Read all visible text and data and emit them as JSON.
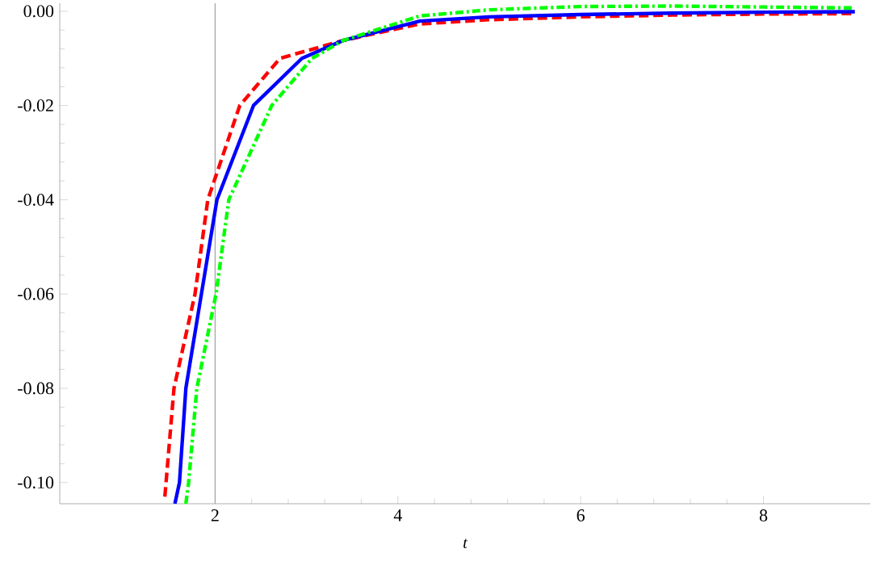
{
  "chart_data": {
    "type": "line",
    "xlabel": "t",
    "xlim": [
      0.3,
      9.17
    ],
    "ylim": [
      -0.1045,
      0.0017
    ],
    "xticks": [
      2,
      4,
      6,
      8
    ],
    "yticks": [
      {
        "value": 0,
        "label": "0.00"
      },
      {
        "value": -0.02,
        "label": "-0.02"
      },
      {
        "value": -0.04,
        "label": "-0.04"
      },
      {
        "value": -0.06,
        "label": "-0.06"
      },
      {
        "value": -0.08,
        "label": "-0.08"
      },
      {
        "value": -0.1,
        "label": "-0.10"
      }
    ],
    "marker": "none",
    "ref_lines": [
      {
        "axis": "x",
        "value": 2,
        "color": "#a0a0a0",
        "line_style": "solid"
      }
    ],
    "series": [
      {
        "color": "#ff0000",
        "line_style": "dashed",
        "x": [
          1.45,
          1.55,
          1.78,
          1.92,
          2.27,
          2.71,
          3.4,
          4.24,
          5,
          6,
          7,
          8,
          9
        ],
        "values": [
          -0.103,
          -0.08,
          -0.06,
          -0.04,
          -0.02,
          -0.01,
          -0.0062,
          -0.0027,
          -0.0018,
          -0.0012,
          -0.0008,
          -0.0006,
          -0.0005
        ]
      },
      {
        "color": "#0000ff",
        "line_style": "solid",
        "x": [
          1.56,
          1.61,
          1.68,
          1.85,
          2.02,
          2.42,
          2.95,
          3.4,
          4.24,
          5,
          6,
          7,
          8,
          9
        ],
        "values": [
          -0.1045,
          -0.1,
          -0.08,
          -0.06,
          -0.04,
          -0.02,
          -0.01,
          -0.0062,
          -0.0021,
          -0.0012,
          -0.0007,
          -0.0004,
          -0.0002,
          -0.0001
        ]
      },
      {
        "color": "#00ff00",
        "line_style": "dashdot",
        "x": [
          1.68,
          1.71,
          1.8,
          2.01,
          2.15,
          2.62,
          3.06,
          3.4,
          4.24,
          5,
          6,
          7,
          8,
          9
        ],
        "values": [
          -0.1045,
          -0.1,
          -0.08,
          -0.06,
          -0.04,
          -0.02,
          -0.01,
          -0.0062,
          -0.001,
          0.0003,
          0.001,
          0.0011,
          0.0009,
          0.0007
        ]
      }
    ]
  }
}
